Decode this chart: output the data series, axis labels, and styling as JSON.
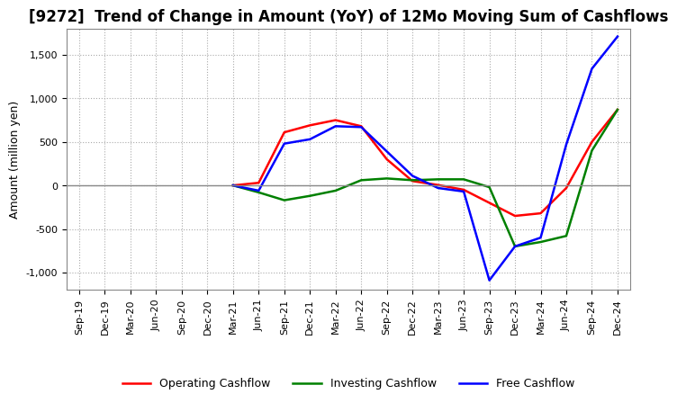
{
  "title": "[9272]  Trend of Change in Amount (YoY) of 12Mo Moving Sum of Cashflows",
  "ylabel": "Amount (million yen)",
  "ylim": [
    -1200,
    1800
  ],
  "yticks": [
    -1000,
    -500,
    0,
    500,
    1000,
    1500
  ],
  "x_labels": [
    "Sep-19",
    "Dec-19",
    "Mar-20",
    "Jun-20",
    "Sep-20",
    "Dec-20",
    "Mar-21",
    "Jun-21",
    "Sep-21",
    "Dec-21",
    "Mar-22",
    "Jun-22",
    "Sep-22",
    "Dec-22",
    "Mar-23",
    "Jun-23",
    "Sep-23",
    "Dec-23",
    "Mar-24",
    "Jun-24",
    "Sep-24",
    "Dec-24"
  ],
  "operating": [
    null,
    null,
    null,
    null,
    null,
    null,
    0,
    30,
    610,
    690,
    750,
    680,
    300,
    50,
    5,
    -50,
    -200,
    -350,
    -320,
    -30,
    500,
    870
  ],
  "investing": [
    null,
    null,
    null,
    null,
    null,
    null,
    0,
    -80,
    -170,
    -120,
    -60,
    60,
    80,
    60,
    70,
    70,
    -20,
    -700,
    -650,
    -580,
    400,
    870
  ],
  "free": [
    null,
    null,
    null,
    null,
    null,
    null,
    0,
    -60,
    480,
    530,
    680,
    670,
    390,
    110,
    -30,
    -70,
    -1090,
    -700,
    -600,
    470,
    1340,
    1710
  ],
  "operating_color": "#ff0000",
  "investing_color": "#008000",
  "free_color": "#0000ff",
  "background_color": "#ffffff",
  "grid_color": "#aaaaaa",
  "title_fontsize": 12,
  "axis_fontsize": 9,
  "tick_fontsize": 8,
  "legend_fontsize": 9
}
